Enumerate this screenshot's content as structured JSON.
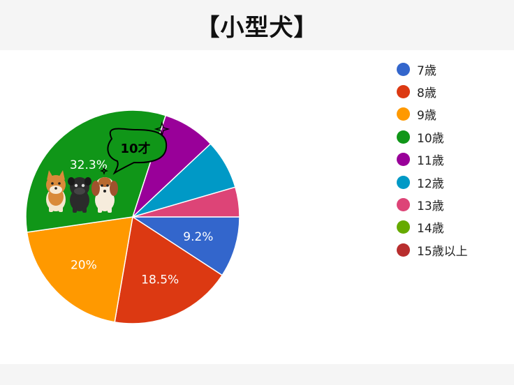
{
  "title": "【小型犬】",
  "callout": "10才",
  "chart_data": {
    "type": "pie",
    "categories": [
      "7歳",
      "8歳",
      "9歳",
      "10歳",
      "11歳",
      "12歳",
      "13歳",
      "14歳",
      "15歳以上"
    ],
    "values": [
      9.2,
      18.5,
      20,
      32.3,
      8.0,
      7.5,
      4.5,
      0,
      0
    ],
    "data_labels": [
      "9.2%",
      "18.5%",
      "20%",
      "32.3%",
      "",
      "",
      "",
      "",
      ""
    ],
    "colors": [
      "#3366cc",
      "#dc3912",
      "#ff9900",
      "#109618",
      "#990099",
      "#0099c6",
      "#dd4477",
      "#66aa00",
      "#b82e2e"
    ],
    "start_angle_deg": 90,
    "direction": "clockwise",
    "legend_position": "right"
  }
}
